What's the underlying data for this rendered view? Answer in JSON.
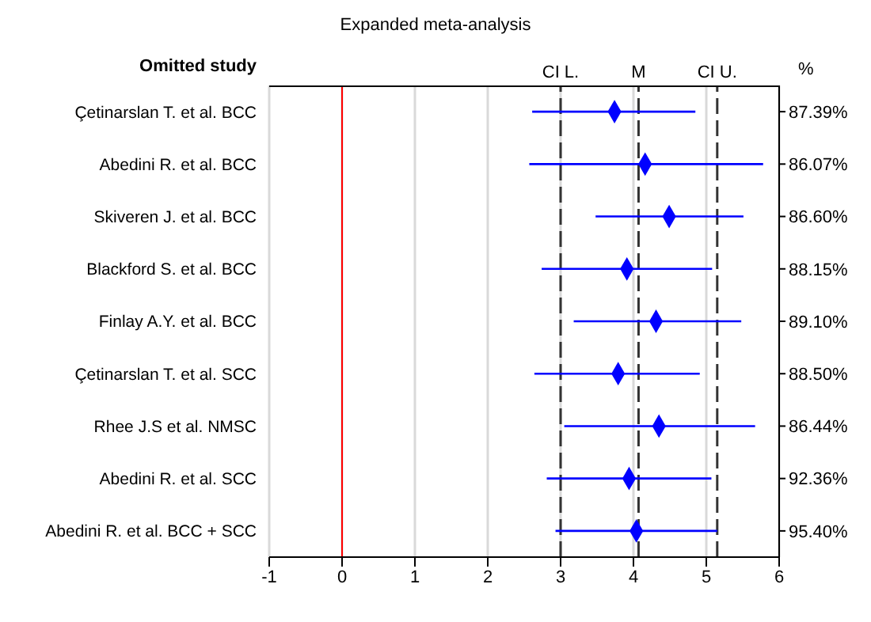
{
  "chart_data": {
    "type": "scatter",
    "orientation": "horizontal",
    "title": "Expanded meta-analysis",
    "ylabel": "Omitted study",
    "y2label": "%",
    "categories": [
      "Çetinarslan T. et al. BCC",
      "Abedini R. et al. BCC",
      "Skiveren J. et al. BCC",
      "Blackford S. et al. BCC",
      "Finlay  A.Y. et al. BCC",
      "Çetinarslan T. et al. SCC",
      "Rhee J.S et al. NMSC",
      "Abedini R. et al. SCC",
      "Abedini R. et al. BCC + SCC"
    ],
    "y2_categories": [
      "87.39%",
      "86.07%",
      "86.60%",
      "88.15%",
      "89.10%",
      "88.50%",
      "86.44%",
      "92.36%",
      "95.40%"
    ],
    "color": "#0000ff",
    "values": [
      3.74,
      4.16,
      4.49,
      3.91,
      4.31,
      3.79,
      4.35,
      3.94,
      4.04
    ],
    "errors": [
      [
        2.61,
        4.85
      ],
      [
        2.57,
        5.78
      ],
      [
        3.48,
        5.51
      ],
      [
        2.74,
        5.08
      ],
      [
        3.18,
        5.48
      ],
      [
        2.64,
        4.91
      ],
      [
        3.05,
        5.67
      ],
      [
        2.81,
        5.07
      ],
      [
        2.93,
        5.15
      ]
    ],
    "xlim": [
      -1,
      6
    ],
    "xticks": [
      -1,
      0,
      1,
      2,
      3,
      4,
      5,
      6
    ],
    "grid": "x",
    "marker": "diamond",
    "legend": false,
    "ref_lines": [
      {
        "axis": "x",
        "value": 0,
        "label": null,
        "color": "#ff0000",
        "line_style": "solid"
      },
      {
        "axis": "x",
        "value": 3,
        "label": "CI L.",
        "color": "#333333",
        "line_style": "dashed"
      },
      {
        "axis": "x",
        "value": 4.07,
        "label": "M",
        "color": "#333333",
        "line_style": "dashed"
      },
      {
        "axis": "x",
        "value": 5.15,
        "label": "CI U.",
        "color": "#333333",
        "line_style": "dashed"
      }
    ]
  }
}
